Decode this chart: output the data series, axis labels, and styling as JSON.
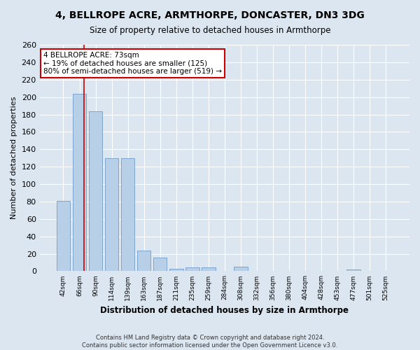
{
  "title": "4, BELLROPE ACRE, ARMTHORPE, DONCASTER, DN3 3DG",
  "subtitle": "Size of property relative to detached houses in Armthorpe",
  "xlabel": "Distribution of detached houses by size in Armthorpe",
  "ylabel": "Number of detached properties",
  "footer_line1": "Contains HM Land Registry data © Crown copyright and database right 2024.",
  "footer_line2": "Contains public sector information licensed under the Open Government Licence v3.0.",
  "bar_labels": [
    "42sqm",
    "66sqm",
    "90sqm",
    "114sqm",
    "139sqm",
    "163sqm",
    "187sqm",
    "211sqm",
    "235sqm",
    "259sqm",
    "284sqm",
    "308sqm",
    "332sqm",
    "356sqm",
    "380sqm",
    "404sqm",
    "428sqm",
    "453sqm",
    "477sqm",
    "501sqm",
    "525sqm"
  ],
  "bar_values": [
    81,
    204,
    184,
    130,
    130,
    24,
    16,
    3,
    4,
    4,
    0,
    5,
    0,
    0,
    0,
    0,
    0,
    0,
    2,
    0,
    0
  ],
  "bar_color": "#b8cfe8",
  "bar_edge_color": "#6090c0",
  "background_color": "#dce6f0",
  "grid_color": "#ffffff",
  "annotation_line1": "4 BELLROPE ACRE: 73sqm",
  "annotation_line2": "← 19% of detached houses are smaller (125)",
  "annotation_line3": "80% of semi-detached houses are larger (519) →",
  "annotation_box_color": "#ffffff",
  "annotation_box_edge_color": "#cc0000",
  "red_line_x": 1.29,
  "ylim": [
    0,
    260
  ],
  "yticks": [
    0,
    20,
    40,
    60,
    80,
    100,
    120,
    140,
    160,
    180,
    200,
    220,
    240,
    260
  ]
}
